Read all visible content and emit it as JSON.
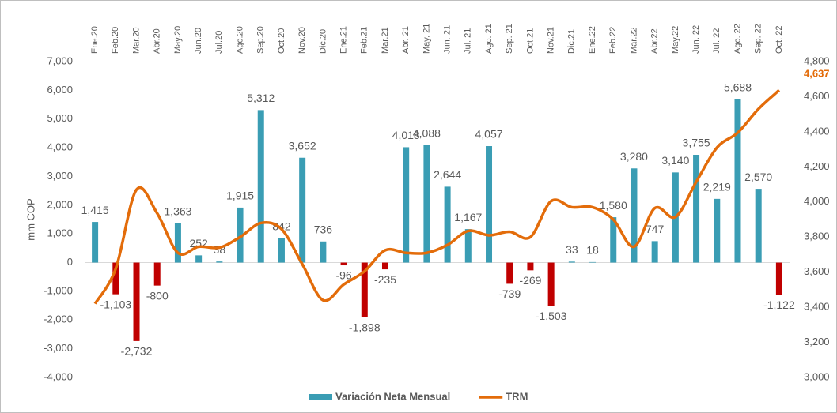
{
  "chart_data": {
    "type": "combo",
    "y_label": "mm COP",
    "categories": [
      "Ene.20",
      "Feb.20",
      "Mar.20",
      "Abr.20",
      "May.20",
      "Jun.20",
      "Jul.20",
      "Ago.20",
      "Sep.20",
      "Oct.20",
      "Nov.20",
      "Dic.20",
      "Ene.21",
      "Feb.21",
      "Mar.21",
      "Abr. 21",
      "May. 21",
      "Jun. 21",
      "Jul. 21",
      "Ago. 21",
      "Sep. 21",
      "Oct.21",
      "Nov.21",
      "Dic.21",
      "Ene.22",
      "Feb.22",
      "Mar.22",
      "Abr.22",
      "May.22",
      "Jun. 22",
      "Jul. 22",
      "Ago. 22",
      "Sep. 22",
      "Oct. 22"
    ],
    "series": [
      {
        "name": "Variación Neta Mensual",
        "kind": "bar",
        "color": "#3a9db4",
        "negative_color": "#c00000",
        "values": [
          1415,
          -1103,
          -2732,
          -800,
          1363,
          252,
          38,
          1915,
          5312,
          842,
          3652,
          736,
          -96,
          -1898,
          -235,
          4018,
          4088,
          2644,
          1167,
          4057,
          -739,
          -269,
          -1503,
          33,
          18,
          1580,
          3280,
          747,
          3140,
          3755,
          2219,
          5688,
          2570,
          -1122
        ],
        "value_labels": [
          "1,415",
          "-1,103",
          "-2,732",
          "-800",
          "1,363",
          "252",
          "38",
          "1,915",
          "5,312",
          "842",
          "3,652",
          "736",
          "-96",
          "-1,898",
          "-235",
          "4,018",
          "4,088",
          "2,644",
          "1,167",
          "4,057",
          "-739",
          "-269",
          "-1,503",
          "33",
          "18",
          "1,580",
          "3,280",
          "747",
          "3,140",
          "3,755",
          "2,219",
          "5,688",
          "2,570",
          "-1,122"
        ]
      },
      {
        "name": "TRM",
        "kind": "line",
        "axis": "y2",
        "color": "#e36c0a",
        "values": [
          3420,
          3620,
          4070,
          3935,
          3710,
          3745,
          3740,
          3800,
          3880,
          3845,
          3645,
          3440,
          3530,
          3605,
          3725,
          3710,
          3710,
          3755,
          3835,
          3810,
          3830,
          3800,
          4005,
          3970,
          3970,
          3900,
          3745,
          3965,
          3915,
          4115,
          4310,
          4395,
          4530,
          4637
        ],
        "value_labels": [
          null,
          null,
          null,
          null,
          null,
          null,
          null,
          null,
          null,
          null,
          null,
          null,
          null,
          null,
          null,
          null,
          null,
          null,
          null,
          null,
          null,
          null,
          null,
          null,
          null,
          null,
          null,
          null,
          null,
          null,
          null,
          null,
          null,
          "4,637"
        ]
      }
    ],
    "ylim": [
      -4000,
      7000
    ],
    "yticks": [
      {
        "value": -4000,
        "label": "-4,000"
      },
      {
        "value": -3000,
        "label": "-3,000"
      },
      {
        "value": -2000,
        "label": "-2,000"
      },
      {
        "value": -1000,
        "label": "-1,000"
      },
      0,
      {
        "value": 1000,
        "label": "1,000"
      },
      {
        "value": 2000,
        "label": "2,000"
      },
      {
        "value": 3000,
        "label": "3,000"
      },
      {
        "value": 4000,
        "label": "4,000"
      },
      {
        "value": 5000,
        "label": "5,000"
      },
      {
        "value": 6000,
        "label": "6,000"
      },
      {
        "value": 7000,
        "label": "7,000"
      }
    ],
    "y2lim": [
      3000,
      4800
    ],
    "y2ticks": [
      {
        "value": 3000,
        "label": "3,000"
      },
      {
        "value": 3200,
        "label": "3,200"
      },
      {
        "value": 3400,
        "label": "3,400"
      },
      {
        "value": 3600,
        "label": "3,600"
      },
      {
        "value": 3800,
        "label": "3,800"
      },
      {
        "value": 4000,
        "label": "4,000"
      },
      {
        "value": 4200,
        "label": "4,200"
      },
      {
        "value": 4400,
        "label": "4,400"
      },
      {
        "value": 4600,
        "label": "4,600"
      },
      {
        "value": 4800,
        "label": "4,800"
      }
    ],
    "legend": "bottom"
  }
}
